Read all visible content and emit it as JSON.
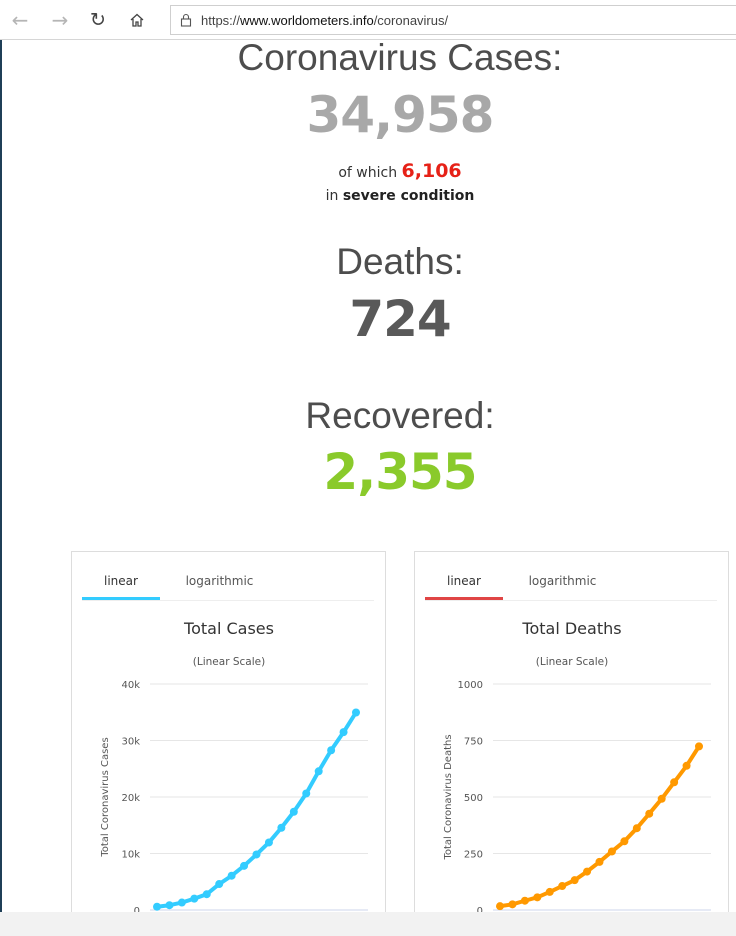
{
  "browser": {
    "url_prefix": "https://",
    "url_domain": "www.worldometers.info",
    "url_path": "/coronavirus/",
    "icons": [
      "back-arrow-icon",
      "forward-arrow-icon",
      "refresh-icon",
      "home-icon",
      "lock-icon"
    ]
  },
  "stats": {
    "cases_title": "Coronavirus Cases:",
    "cases_value": "34,958",
    "of_which": "of which",
    "severe_value": "6,106",
    "in_word": "in",
    "severe_label": "severe condition",
    "deaths_title": "Deaths:",
    "deaths_value": "724",
    "recovered_title": "Recovered:",
    "recovered_value": "2,355",
    "colors": {
      "cases": "#a8a8a8",
      "severe": "#e62117",
      "deaths": "#595959",
      "recovered": "#8aca2b"
    }
  },
  "cases_tabs": {
    "linear": "linear",
    "logarithmic": "logarithmic",
    "accent": "#33ccff"
  },
  "deaths_tabs": {
    "linear": "linear",
    "logarithmic": "logarithmic",
    "accent": "#e04545"
  },
  "chart_data": [
    {
      "type": "line",
      "title": "Total Cases",
      "subtitle": "(Linear Scale)",
      "ylabel": "Total Coronavirus Cases",
      "ylim": [
        0,
        40000
      ],
      "yticks": [
        0,
        10000,
        20000,
        30000,
        40000
      ],
      "ytick_labels": [
        "0",
        "10k",
        "20k",
        "30k",
        "40k"
      ],
      "grid": true,
      "color": "#33ccff",
      "values": [
        580,
        845,
        1320,
        2014,
        2798,
        4593,
        6065,
        7818,
        9826,
        11953,
        14557,
        17391,
        20630,
        24554,
        28276,
        31481,
        34958
      ]
    },
    {
      "type": "line",
      "title": "Total Deaths",
      "subtitle": "(Linear Scale)",
      "ylabel": "Total Coronavirus Deaths",
      "ylim": [
        0,
        1000
      ],
      "yticks": [
        0,
        250,
        500,
        750,
        1000
      ],
      "ytick_labels": [
        "0",
        "250",
        "500",
        "750",
        "1000"
      ],
      "grid": true,
      "color": "#ff9900",
      "values": [
        17,
        25,
        41,
        56,
        80,
        106,
        132,
        170,
        213,
        259,
        304,
        362,
        426,
        492,
        565,
        638,
        724
      ]
    }
  ]
}
